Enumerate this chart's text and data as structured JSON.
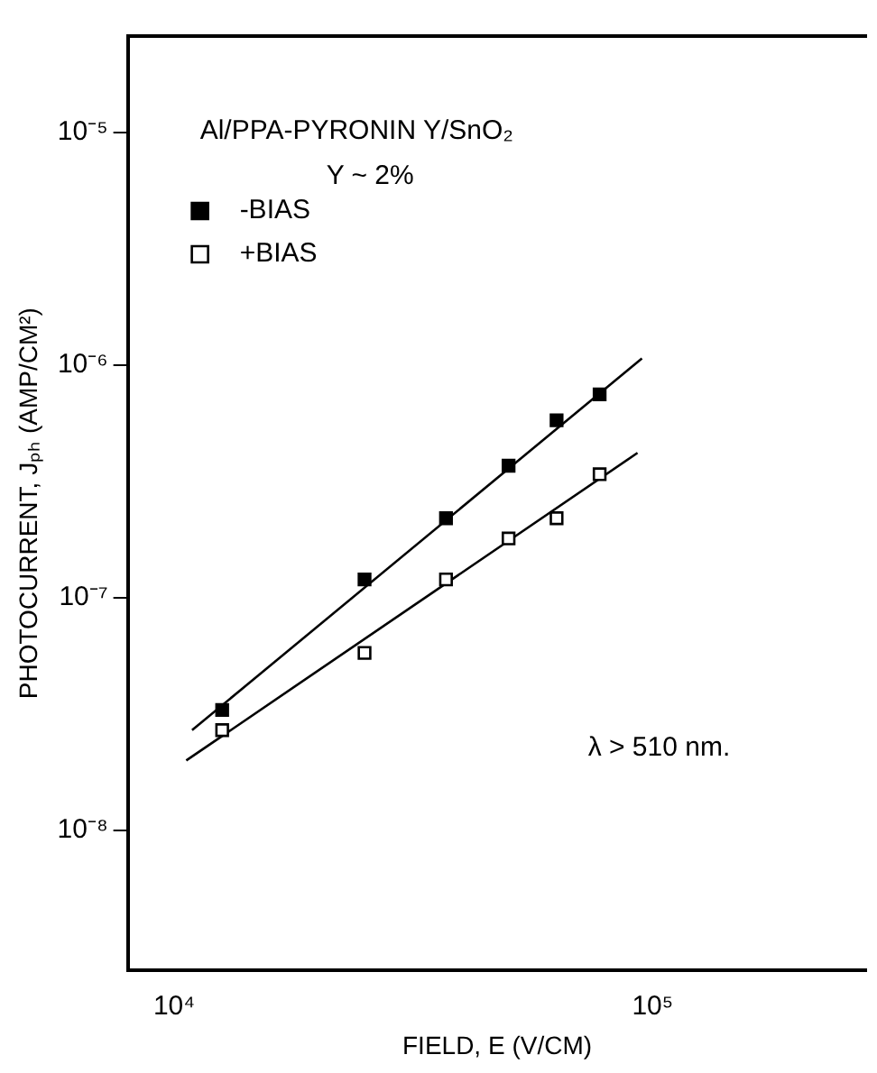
{
  "chart_data": {
    "type": "scatter",
    "xlabel": "FIELD, E (V/CM)",
    "ylabel": "PHOTOCURRENT, Jₚₕ (AMP/CM²)",
    "annotations": [
      "Al/PPA-PYRONIN Y/SnO₂",
      "Y ~ 2%",
      "λ > 510 nm."
    ],
    "log": "xy",
    "xlim": [
      8000,
      280000
    ],
    "xticks": [
      {
        "value": 10000,
        "label": "10⁴"
      },
      {
        "value": 100000,
        "label": "10⁵"
      }
    ],
    "ylim": [
      2.5e-09,
      2.6e-05
    ],
    "yticks": [
      {
        "value": 1e-08,
        "label": "10⁻⁸"
      },
      {
        "value": 1e-07,
        "label": "10⁻⁷"
      },
      {
        "value": 1e-06,
        "label": "10⁻⁶"
      },
      {
        "value": 1e-05,
        "label": "10⁻⁵"
      }
    ],
    "grid": false,
    "legend": "top left",
    "marker": "square",
    "series": [
      {
        "name": "-BIAS",
        "color": "#000000",
        "x": [
          12600,
          25000,
          37000,
          50000,
          63000,
          77500
        ],
        "values": [
          3.3e-08,
          1.2e-07,
          2.2e-07,
          3.7e-07,
          5.8e-07,
          7.5e-07
        ]
      },
      {
        "name": "+BIAS",
        "color": "#ffffff",
        "x": [
          12600,
          25000,
          37000,
          50000,
          63000,
          77500
        ],
        "values": [
          2.7e-08,
          5.8e-08,
          1.2e-07,
          1.8e-07,
          2.2e-07,
          3.4e-07
        ]
      },
      {
        "type": "line",
        "color": "#000000",
        "marker": "none",
        "x": [
          10900,
          95000
        ],
        "values": [
          2.7e-08,
          1.07e-06
        ]
      },
      {
        "type": "line",
        "color": "#000000",
        "marker": "none",
        "x": [
          10600,
          93000
        ],
        "values": [
          2e-08,
          4.2e-07
        ]
      }
    ]
  }
}
